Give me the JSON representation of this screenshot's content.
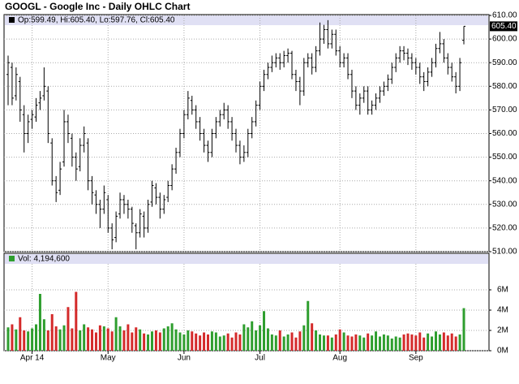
{
  "chart_data": {
    "type": "ohlc",
    "title": "GOOGL - Google Inc - Daily OHLC Chart",
    "ohlc_label": "Op:599.49, Hi:605.40, Lo:597.76, Cl:605.40",
    "last_label": "605.40",
    "volume_label": "Vol: 4,194,600",
    "categories": [
      null,
      null,
      null,
      null,
      null,
      null,
      "Apr 14",
      null,
      null,
      null,
      null,
      null,
      null,
      null,
      null,
      null,
      null,
      null,
      null,
      null,
      null,
      null,
      null,
      null,
      null,
      "May",
      null,
      null,
      null,
      null,
      null,
      null,
      null,
      null,
      null,
      null,
      null,
      null,
      null,
      null,
      null,
      null,
      null,
      null,
      "Jun",
      null,
      null,
      null,
      null,
      null,
      null,
      null,
      null,
      null,
      null,
      null,
      null,
      null,
      null,
      null,
      null,
      null,
      null,
      "Jul",
      null,
      null,
      null,
      null,
      null,
      null,
      null,
      null,
      null,
      null,
      null,
      null,
      null,
      null,
      null,
      null,
      null,
      null,
      null,
      "Aug",
      null,
      null,
      null,
      null,
      null,
      null,
      null,
      null,
      null,
      null,
      null,
      null,
      null,
      null,
      null,
      null,
      null,
      null,
      "Sep",
      null,
      null,
      null,
      null,
      null,
      null,
      null,
      null,
      null,
      null,
      null,
      null
    ],
    "open": [
      585,
      588,
      576,
      582,
      568,
      560,
      566,
      567,
      573,
      576,
      578,
      556,
      540,
      536,
      548,
      565,
      558,
      550,
      546,
      555,
      556,
      540,
      534,
      530,
      528,
      532,
      520,
      516,
      526,
      532,
      530,
      528,
      521,
      518,
      525,
      520,
      531,
      537,
      533,
      528,
      533,
      538,
      545,
      552,
      560,
      568,
      574,
      570,
      565,
      560,
      555,
      552,
      560,
      565,
      568,
      570,
      565,
      560,
      555,
      550,
      552,
      560,
      565,
      572,
      580,
      585,
      588,
      590,
      592,
      590,
      593,
      594,
      585,
      582,
      578,
      590,
      592,
      588,
      595,
      600,
      604,
      598,
      602,
      595,
      590,
      592,
      585,
      578,
      572,
      575,
      578,
      570,
      572,
      575,
      578,
      580,
      583,
      588,
      592,
      595,
      594,
      592,
      590,
      588,
      584,
      582,
      586,
      590,
      596,
      598,
      592,
      588,
      584,
      580,
      599.49
    ],
    "high": [
      593,
      590,
      588,
      584,
      572,
      568,
      570,
      575,
      578,
      588,
      580,
      558,
      542,
      548,
      570,
      568,
      560,
      552,
      558,
      563,
      558,
      542,
      536,
      532,
      538,
      534,
      522,
      527,
      535,
      534,
      532,
      529,
      522,
      528,
      527,
      532,
      540,
      539,
      535,
      534,
      540,
      547,
      554,
      562,
      570,
      578,
      576,
      572,
      567,
      562,
      557,
      562,
      567,
      570,
      573,
      572,
      567,
      562,
      557,
      555,
      562,
      567,
      574,
      582,
      587,
      590,
      593,
      594,
      594,
      595,
      596,
      595,
      587,
      584,
      592,
      594,
      594,
      597,
      607,
      606,
      608,
      604,
      604,
      597,
      594,
      594,
      587,
      580,
      577,
      580,
      580,
      574,
      577,
      580,
      582,
      585,
      590,
      594,
      597,
      597,
      596,
      594,
      592,
      590,
      586,
      588,
      592,
      598,
      603,
      600,
      594,
      590,
      586,
      592,
      605.4
    ],
    "low": [
      572,
      572,
      574,
      565,
      552,
      556,
      562,
      565,
      570,
      574,
      556,
      538,
      531,
      534,
      546,
      556,
      546,
      540,
      544,
      552,
      536,
      530,
      526,
      520,
      526,
      518,
      511,
      514,
      524,
      526,
      524,
      518,
      511,
      516,
      516,
      518,
      529,
      530,
      524,
      526,
      531,
      536,
      543,
      550,
      558,
      566,
      568,
      562,
      557,
      552,
      548,
      550,
      558,
      563,
      566,
      562,
      557,
      552,
      547,
      548,
      550,
      558,
      563,
      570,
      578,
      583,
      586,
      588,
      587,
      588,
      590,
      583,
      578,
      572,
      576,
      588,
      585,
      586,
      593,
      598,
      596,
      596,
      593,
      588,
      588,
      583,
      575,
      570,
      568,
      573,
      568,
      568,
      570,
      573,
      576,
      578,
      581,
      586,
      590,
      591,
      589,
      587,
      585,
      581,
      578,
      580,
      584,
      588,
      594,
      590,
      585,
      582,
      577,
      578,
      597.76
    ],
    "close": [
      590,
      575,
      585,
      570,
      560,
      565,
      568,
      572,
      575,
      580,
      560,
      540,
      535,
      545,
      565,
      560,
      550,
      545,
      555,
      560,
      540,
      535,
      530,
      528,
      535,
      520,
      515,
      525,
      532,
      530,
      528,
      522,
      518,
      526,
      520,
      530,
      538,
      533,
      528,
      532,
      538,
      545,
      552,
      560,
      568,
      575,
      570,
      565,
      560,
      555,
      552,
      560,
      565,
      568,
      570,
      565,
      560,
      555,
      550,
      552,
      560,
      565,
      572,
      580,
      585,
      588,
      590,
      592,
      590,
      593,
      594,
      585,
      582,
      578,
      590,
      592,
      588,
      595,
      600,
      604,
      598,
      602,
      595,
      590,
      592,
      585,
      578,
      572,
      575,
      578,
      570,
      572,
      575,
      578,
      580,
      583,
      588,
      592,
      595,
      594,
      592,
      590,
      588,
      584,
      582,
      586,
      590,
      596,
      598,
      592,
      588,
      584,
      580,
      590,
      605.4
    ],
    "volume": [
      2.3,
      2.6,
      2.1,
      3.3,
      2.0,
      1.9,
      2.2,
      2.6,
      5.6,
      3.1,
      2.0,
      3.6,
      2.4,
      2.1,
      2.5,
      4.3,
      2.2,
      5.8,
      2.0,
      2.6,
      2.3,
      2.1,
      1.8,
      2.5,
      2.4,
      2.2,
      1.9,
      3.3,
      2.4,
      2.0,
      2.6,
      1.8,
      2.3,
      2.1,
      1.7,
      1.6,
      1.9,
      2.0,
      1.8,
      2.2,
      2.4,
      2.7,
      2.1,
      1.8,
      1.6,
      2.0,
      1.9,
      1.7,
      1.5,
      1.8,
      1.6,
      1.9,
      1.8,
      1.4,
      1.5,
      1.7,
      1.3,
      1.8,
      1.6,
      2.6,
      2.3,
      2.9,
      2.0,
      2.5,
      3.9,
      2.2,
      1.6,
      1.5,
      2.0,
      1.4,
      1.6,
      1.8,
      1.3,
      1.9,
      2.5,
      4.9,
      2.7,
      2.0,
      1.6,
      1.5,
      1.5,
      1.3,
      1.6,
      2.1,
      1.8,
      1.5,
      1.4,
      1.6,
      1.5,
      1.3,
      1.7,
      1.5,
      1.9,
      1.4,
      1.6,
      1.5,
      1.2,
      1.4,
      1.3,
      1.6,
      1.7,
      1.6,
      1.5,
      1.8,
      1.3,
      1.7,
      1.4,
      1.9,
      1.6,
      1.8,
      1.5,
      1.7,
      1.4,
      1.6,
      4.1946
    ],
    "ylim": [
      510,
      610
    ],
    "yticks": [
      {
        "value": 510,
        "label": "510.00"
      },
      {
        "value": 520,
        "label": "520.00"
      },
      {
        "value": 530,
        "label": "530.00"
      },
      {
        "value": 540,
        "label": "540.00"
      },
      {
        "value": 550,
        "label": "550.00"
      },
      {
        "value": 560,
        "label": "560.00"
      },
      {
        "value": 570,
        "label": "570.00"
      },
      {
        "value": 580,
        "label": "580.00"
      },
      {
        "value": 590,
        "label": "590.00"
      },
      {
        "value": 600,
        "label": "600.00"
      },
      {
        "value": 610,
        "label": "610.00"
      }
    ],
    "y2lim": [
      0,
      7
    ],
    "y2ticks": [
      {
        "value": 0,
        "label": "0M"
      },
      {
        "value": 2,
        "label": "2M"
      },
      {
        "value": 4,
        "label": "4M"
      },
      {
        "value": 6,
        "label": "6M"
      }
    ],
    "color": "#000000",
    "up_color": "#2e9e2e",
    "down_color": "#d42a2a",
    "grid": true
  }
}
